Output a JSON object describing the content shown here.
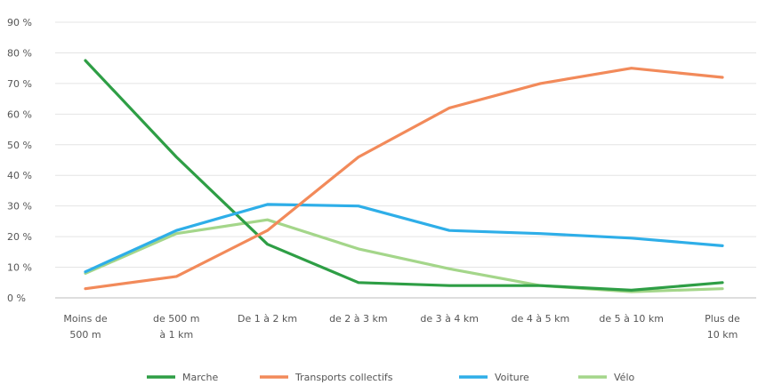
{
  "chart_data": {
    "type": "line",
    "categories": [
      [
        "Moins de",
        "500 m"
      ],
      [
        "de 500 m",
        "à 1 km"
      ],
      [
        "De 1 à 2 km"
      ],
      [
        "de 2 à 3 km"
      ],
      [
        "de 3 à 4 km"
      ],
      [
        "de 4 à 5 km"
      ],
      [
        "de 5 à 10 km"
      ],
      [
        "Plus de",
        "10 km"
      ]
    ],
    "y_ticks": [
      "0 %",
      "10 %",
      "20 %",
      "30 %",
      "40 %",
      "50 %",
      "60 %",
      "70 %",
      "80 %",
      "90 %"
    ],
    "ylim": [
      0,
      90
    ],
    "grid": true,
    "legend_position": "bottom",
    "series": [
      {
        "name": "Marche",
        "color": "#2e9e45",
        "values": [
          77.5,
          46,
          17.5,
          5,
          4,
          4,
          2.5,
          5
        ]
      },
      {
        "name": "Transports collectifs",
        "color": "#f28a5a",
        "values": [
          3,
          7,
          22,
          46,
          62,
          70,
          75,
          72
        ]
      },
      {
        "name": "Voiture",
        "color": "#2eaee8",
        "values": [
          8.5,
          22,
          30.5,
          30,
          22,
          21,
          19.5,
          17
        ]
      },
      {
        "name": "Vélo",
        "color": "#a4d68a",
        "values": [
          8,
          21,
          25.5,
          16,
          9.5,
          4,
          2,
          3
        ]
      }
    ]
  }
}
